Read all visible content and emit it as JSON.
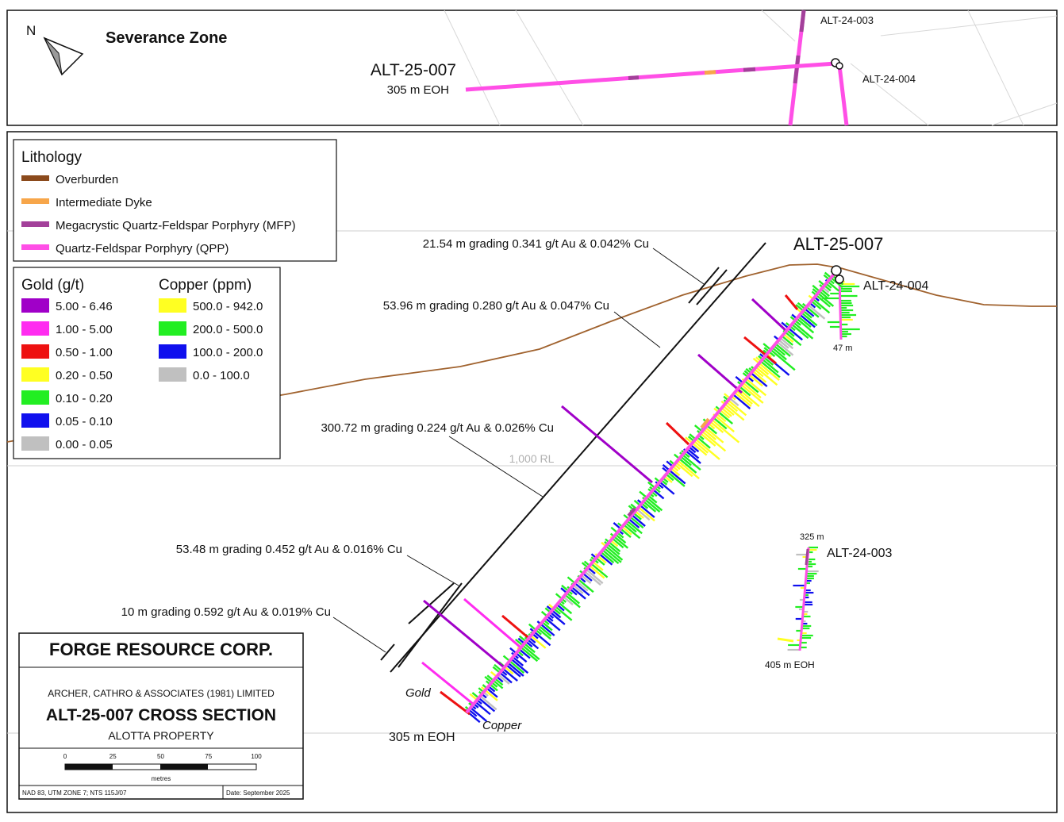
{
  "plan": {
    "north_label": "N",
    "title": "Severance Zone",
    "hole_main": "ALT-25-007",
    "hole_main_eoh": "305 m EOH",
    "hole_003": "ALT-24-003",
    "hole_004": "ALT-24-004"
  },
  "lithology_legend": {
    "title": "Lithology",
    "items": [
      {
        "label": "Overburden",
        "color": "#8b4a1c"
      },
      {
        "label": "Intermediate Dyke",
        "color": "#f7a64a"
      },
      {
        "label": "Megacrystic Quartz-Feldspar Porphyry (MFP)",
        "color": "#a3409a"
      },
      {
        "label": "Quartz-Feldspar Porphyry (QPP)",
        "color": "#ff4fe6"
      }
    ]
  },
  "assay_legend": {
    "gold_title": "Gold (g/t)",
    "copper_title": "Copper (ppm)",
    "gold": [
      {
        "label": "5.00 - 6.46",
        "color": "#a000c8"
      },
      {
        "label": "1.00 - 5.00",
        "color": "#ff2cf0"
      },
      {
        "label": "0.50 - 1.00",
        "color": "#ee1111"
      },
      {
        "label": "0.20 - 0.50",
        "color": "#ffff22"
      },
      {
        "label": "0.10 - 0.20",
        "color": "#22ee22"
      },
      {
        "label": "0.05 - 0.10",
        "color": "#1010ee"
      },
      {
        "label": "0.00 - 0.05",
        "color": "#c0c0c0"
      }
    ],
    "copper": [
      {
        "label": "500.0 - 942.0",
        "color": "#ffff22"
      },
      {
        "label": "200.0 - 500.0",
        "color": "#22ee22"
      },
      {
        "label": "100.0 - 200.0",
        "color": "#1010ee"
      },
      {
        "label": "0.0 - 100.0",
        "color": "#c0c0c0"
      }
    ]
  },
  "section": {
    "hole_main": "ALT-25-007",
    "hole_004": "ALT-24-004",
    "hole_004_depth": "47 m",
    "hole_003": "ALT-24-003",
    "hole_003_top": "325 m",
    "hole_003_eoh": "405 m EOH",
    "main_eoh": "305 m EOH",
    "gold_label": "Gold",
    "copper_label": "Copper",
    "rl_label": "1,000 RL"
  },
  "intercepts": [
    "21.54 m grading 0.341 g/t Au & 0.042% Cu",
    "53.96 m grading 0.280 g/t Au & 0.047% Cu",
    "300.72 m grading 0.224 g/t Au & 0.026% Cu",
    "53.48 m grading 0.452 g/t Au & 0.016% Cu",
    "10 m grading 0.592 g/t Au & 0.019% Cu"
  ],
  "title_block": {
    "company": "FORGE RESOURCE CORP.",
    "consultant": "ARCHER, CATHRO & ASSOCIATES (1981) LIMITED",
    "section_title": "ALT-25-007 CROSS SECTION",
    "property": "ALOTTA PROPERTY",
    "scale_ticks": [
      "0",
      "25",
      "50",
      "75",
      "100"
    ],
    "scale_unit": "metres",
    "projection": "NAD 83, UTM ZONE 7; NTS 115J/07",
    "date": "Date: September 2025"
  }
}
